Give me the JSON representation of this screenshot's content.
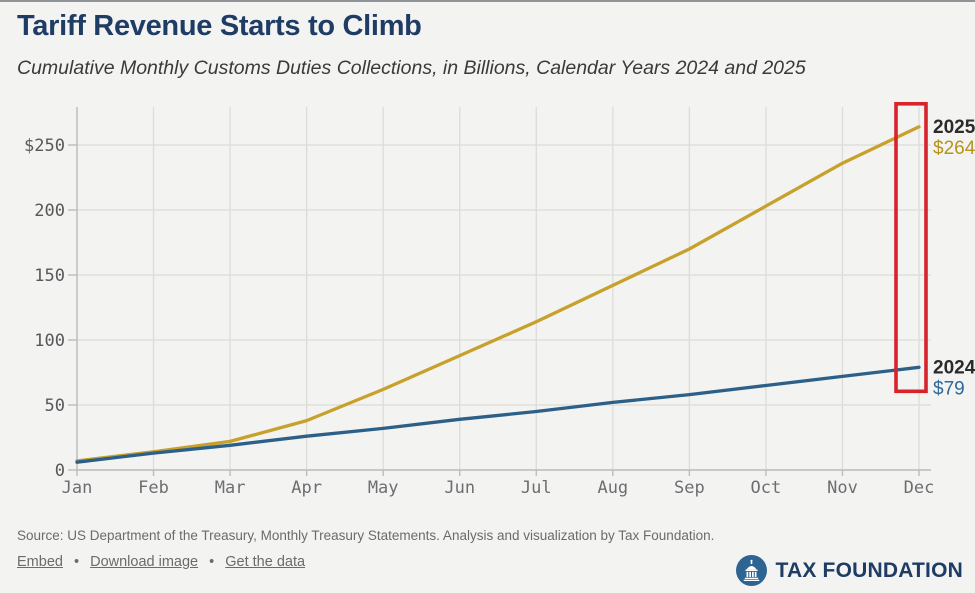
{
  "header": {
    "title": "Tariff Revenue Starts to Climb",
    "subtitle": "Cumulative Monthly Customs Duties Collections, in Billions, Calendar Years 2024 and 2025"
  },
  "chart_data": {
    "type": "line",
    "categories": [
      "Jan",
      "Feb",
      "Mar",
      "Apr",
      "May",
      "Jun",
      "Jul",
      "Aug",
      "Sep",
      "Oct",
      "Nov",
      "Dec"
    ],
    "series": [
      {
        "name": "2025",
        "color": "#C7A12B",
        "label_color": "#B5931E",
        "values": [
          7,
          14,
          22,
          38,
          62,
          88,
          114,
          142,
          170,
          203,
          236,
          264
        ],
        "end_label": "$264"
      },
      {
        "name": "2024",
        "color": "#2C6088",
        "label_color": "#2E689A",
        "values": [
          6,
          13,
          19,
          26,
          32,
          39,
          45,
          52,
          58,
          65,
          72,
          79
        ],
        "end_label": "$79"
      }
    ],
    "ylim": [
      0,
      280
    ],
    "yticks": [
      {
        "value": 250,
        "label": "$250"
      },
      {
        "value": 200,
        "label": "200"
      },
      {
        "value": 150,
        "label": "150"
      },
      {
        "value": 100,
        "label": "100"
      },
      {
        "value": 50,
        "label": "50"
      },
      {
        "value": 0,
        "label": "0"
      }
    ],
    "grid": true,
    "legend": "end-of-line labels",
    "highlight": {
      "type": "rect",
      "month": "Dec",
      "color": "#D8232A"
    }
  },
  "footer": {
    "source": "Source: US Department of the Treasury, Monthly Treasury Statements. Analysis and visualization by Tax Foundation.",
    "links": [
      {
        "label": "Embed"
      },
      {
        "label": "Download image"
      },
      {
        "label": "Get the data"
      }
    ],
    "separator": "•",
    "logo_text": "TAX FOUNDATION"
  },
  "colors": {
    "title_navy": "#1E3C64",
    "gold_line": "#C7A12B",
    "blue_line": "#2C6088",
    "highlight_red": "#D8232A",
    "background": "#F3F3F1"
  }
}
